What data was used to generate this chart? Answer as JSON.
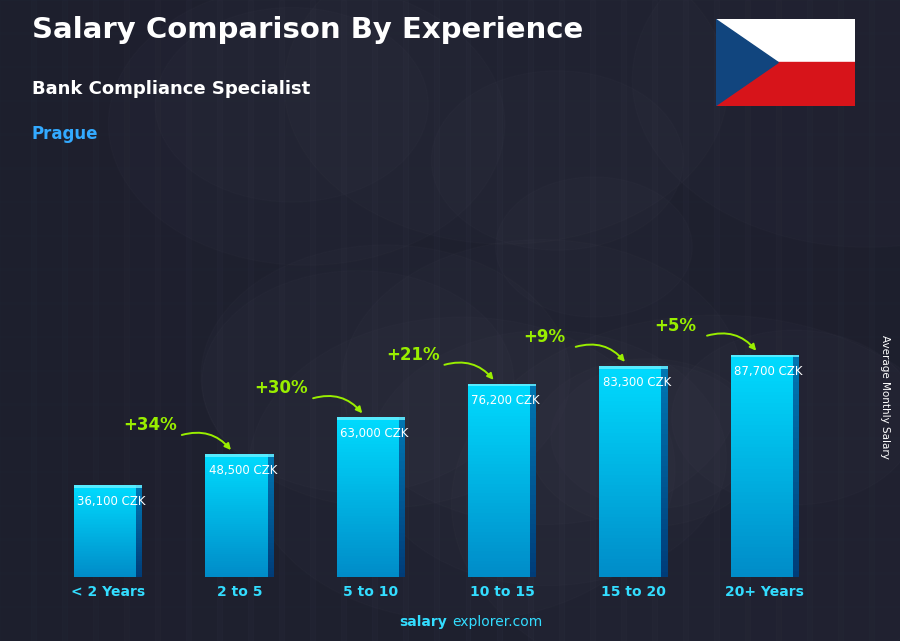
{
  "title": "Salary Comparison By Experience",
  "subtitle": "Bank Compliance Specialist",
  "city": "Prague",
  "categories": [
    "< 2 Years",
    "2 to 5",
    "5 to 10",
    "10 to 15",
    "15 to 20",
    "20+ Years"
  ],
  "values": [
    36100,
    48500,
    63000,
    76200,
    83300,
    87700
  ],
  "labels": [
    "36,100 CZK",
    "48,500 CZK",
    "63,000 CZK",
    "76,200 CZK",
    "83,300 CZK",
    "87,700 CZK"
  ],
  "pct_changes": [
    "+34%",
    "+30%",
    "+21%",
    "+9%",
    "+5%"
  ],
  "bar_main": "#00bfff",
  "bar_left": "#00aaee",
  "bar_right": "#007ab8",
  "bar_top": "#33ddff",
  "bg_color": "#1c1c2a",
  "title_color": "#ffffff",
  "subtitle_color": "#ffffff",
  "city_color": "#33aaff",
  "label_color": "#ffffff",
  "pct_color": "#99ee00",
  "xtick_color": "#33ddff",
  "ylabel_text": "Average Monthly Salary",
  "watermark_bold": "salary",
  "watermark_normal": "explorer.com",
  "watermark_color": "#33ddff",
  "arrow_color": "#99ee00"
}
